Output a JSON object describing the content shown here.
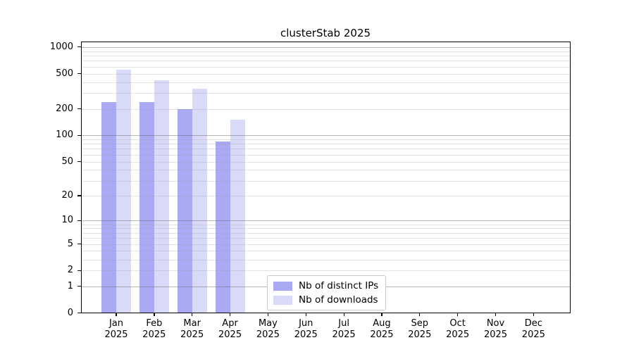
{
  "title": "clusterStab 2025",
  "chart_data": {
    "type": "bar",
    "title": "clusterStab 2025",
    "x_months": [
      "Jan",
      "Feb",
      "Mar",
      "Apr",
      "May",
      "Jun",
      "Jul",
      "Aug",
      "Sep",
      "Oct",
      "Nov",
      "Dec"
    ],
    "x_year": "2025",
    "categories": [
      "Jan 2025",
      "Feb 2025",
      "Mar 2025",
      "Apr 2025",
      "May 2025",
      "Jun 2025",
      "Jul 2025",
      "Aug 2025",
      "Sep 2025",
      "Oct 2025",
      "Nov 2025",
      "Dec 2025"
    ],
    "series": [
      {
        "name": "Nb of distinct IPs",
        "color": "#a9a9f4",
        "values": [
          240,
          240,
          197,
          85,
          0,
          0,
          0,
          0,
          0,
          0,
          0,
          0
        ]
      },
      {
        "name": "Nb of downloads",
        "color": "#d9d9f8",
        "values": [
          550,
          420,
          335,
          150,
          0,
          0,
          0,
          0,
          0,
          0,
          0,
          0
        ]
      }
    ],
    "y_scale": "log(1+v)",
    "y_ticks": [
      0,
      1,
      2,
      5,
      10,
      20,
      50,
      100,
      200,
      500,
      1000
    ],
    "y_major_gridlines": [
      1,
      10,
      100,
      1000
    ],
    "y_minor_gridlines": [
      2,
      3,
      4,
      5,
      6,
      7,
      8,
      9,
      20,
      30,
      40,
      50,
      60,
      70,
      80,
      90,
      200,
      300,
      400,
      500,
      600,
      700,
      800,
      900
    ],
    "ylim": [
      0,
      1130
    ],
    "grid": "major+minor horizontal, drawn above bars",
    "legend_position": "inside bottom, left-of-center"
  },
  "legend": {
    "items": [
      {
        "label": "Nb of distinct IPs",
        "color": "#a9a9f4"
      },
      {
        "label": "Nb of downloads",
        "color": "#d9d9f8"
      }
    ]
  },
  "colors": {
    "series_distinct_ips": "#a9a9f4",
    "series_downloads": "#d9d9f8",
    "grid_major": "rgba(95,95,95,0.45)",
    "grid_minor": "rgba(155,155,155,0.28)",
    "spine": "#000000",
    "text": "#000000",
    "legend_border": "#c9c9c9",
    "background": "#ffffff"
  }
}
